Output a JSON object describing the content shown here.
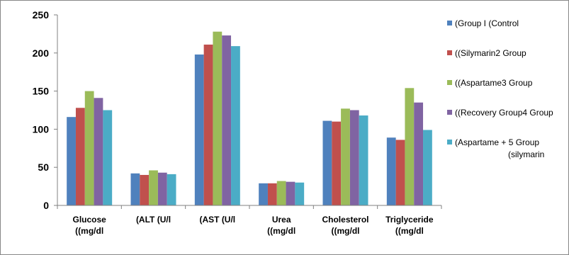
{
  "chart_data": {
    "type": "bar",
    "title": "",
    "xlabel": "",
    "ylabel": "",
    "ylim": [
      0,
      250
    ],
    "yticks": [
      0,
      50,
      100,
      150,
      200,
      250
    ],
    "grid": false,
    "legend_position": "right",
    "categories": [
      [
        "Glucose",
        "((mg/dl"
      ],
      [
        "(ALT (U/l"
      ],
      [
        "(AST (U/l"
      ],
      [
        "Urea",
        "((mg/dl"
      ],
      [
        "Cholesterol",
        "((mg/dl"
      ],
      [
        "Triglyceride",
        "((mg/dl"
      ]
    ],
    "series": [
      {
        "name": [
          "(Group I (Control"
        ],
        "color": "#4F81BD",
        "values": [
          116,
          42,
          198,
          29,
          111,
          89
        ]
      },
      {
        "name": [
          "((Silymarin2 Group"
        ],
        "color": "#C0504D",
        "values": [
          128,
          40,
          211,
          29,
          110,
          86
        ]
      },
      {
        "name": [
          "((Aspartame3 Group"
        ],
        "color": "#9BBB59",
        "values": [
          150,
          46,
          228,
          32,
          127,
          154
        ]
      },
      {
        "name": [
          "((Recovery Group4 Group"
        ],
        "color": "#8064A2",
        "values": [
          141,
          43,
          223,
          31,
          125,
          135
        ]
      },
      {
        "name": [
          "(Aspartame + 5 Group",
          "(silymarin"
        ],
        "color": "#4BACC6",
        "values": [
          125,
          41,
          209,
          30,
          118,
          99
        ]
      }
    ]
  }
}
